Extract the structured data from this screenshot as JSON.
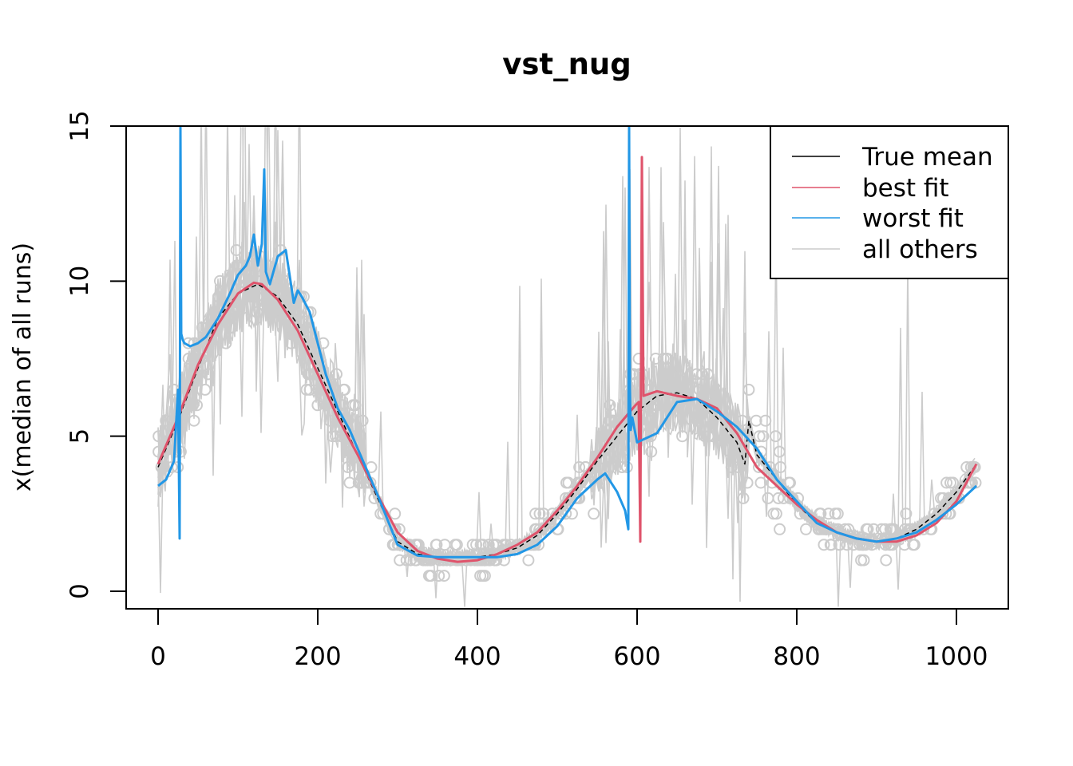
{
  "chart_data": {
    "type": "line",
    "title": "vst_nug",
    "xlabel": "",
    "ylabel": "x(median of all runs)",
    "xlim": [
      -10,
      1035
    ],
    "ylim": [
      -0.6,
      15
    ],
    "x_ticks": [
      0,
      200,
      400,
      600,
      800,
      1000
    ],
    "x_tick_labels": [
      "0",
      "200",
      "400",
      "600",
      "800",
      "1000"
    ],
    "y_ticks": [
      0,
      5,
      10,
      15
    ],
    "y_tick_labels": [
      "0",
      "5",
      "10",
      "15"
    ],
    "grid": false,
    "legend_position": "top-right",
    "colors": {
      "true_mean": "#000000",
      "best_fit": "#DF536B",
      "worst_fit": "#2297E6",
      "all_others": "#CCCCCC"
    },
    "series": [
      {
        "name": "True mean",
        "color": "#000000",
        "style": "dashed",
        "x": [
          0,
          25,
          50,
          75,
          100,
          125,
          150,
          175,
          200,
          225,
          250,
          275,
          300,
          325,
          350,
          375,
          400,
          425,
          450,
          475,
          500,
          525,
          550,
          575,
          600,
          625,
          650,
          675,
          700,
          725,
          735,
          740,
          750,
          775,
          800,
          825,
          850,
          875,
          900,
          925,
          950,
          975,
          1000,
          1025
        ],
        "y": [
          4.0,
          5.5,
          7.2,
          8.8,
          9.6,
          9.9,
          9.5,
          8.6,
          7.2,
          5.8,
          4.4,
          3.0,
          1.6,
          1.2,
          1.1,
          1.1,
          1.1,
          1.2,
          1.4,
          1.8,
          2.5,
          3.3,
          4.2,
          5.0,
          5.8,
          6.3,
          6.4,
          6.2,
          5.6,
          4.8,
          4.1,
          5.5,
          4.4,
          3.6,
          2.8,
          2.2,
          1.9,
          1.7,
          1.6,
          1.7,
          2.0,
          2.5,
          3.2,
          4.1
        ]
      },
      {
        "name": "best fit",
        "color": "#DF536B",
        "x": [
          0,
          25,
          50,
          75,
          100,
          120,
          130,
          150,
          175,
          200,
          225,
          250,
          275,
          300,
          325,
          350,
          375,
          400,
          425,
          450,
          475,
          500,
          525,
          550,
          575,
          598,
          602,
          604,
          606,
          608,
          625,
          650,
          675,
          700,
          725,
          750,
          775,
          800,
          825,
          850,
          875,
          900,
          925,
          950,
          975,
          1000,
          1025
        ],
        "y": [
          4.1,
          5.6,
          7.3,
          8.6,
          9.6,
          9.95,
          9.9,
          9.4,
          8.4,
          7.0,
          5.6,
          4.4,
          3.1,
          1.9,
          1.3,
          1.05,
          0.95,
          1.0,
          1.2,
          1.5,
          1.9,
          2.6,
          3.4,
          4.3,
          5.3,
          6.0,
          6.1,
          1.6,
          14.0,
          6.3,
          6.45,
          6.3,
          6.2,
          5.9,
          5.1,
          4.0,
          3.4,
          2.8,
          2.3,
          1.9,
          1.7,
          1.6,
          1.6,
          1.8,
          2.2,
          2.9,
          4.1
        ]
      },
      {
        "name": "worst fit",
        "color": "#2297E6",
        "x": [
          0,
          10,
          20,
          25,
          27,
          28,
          29,
          31,
          33,
          40,
          50,
          60,
          75,
          90,
          100,
          110,
          115,
          120,
          125,
          130,
          133,
          135,
          140,
          150,
          160,
          170,
          175,
          180,
          190,
          200,
          210,
          225,
          240,
          250,
          275,
          300,
          325,
          350,
          375,
          400,
          425,
          450,
          475,
          500,
          525,
          550,
          560,
          575,
          585,
          589,
          590,
          591,
          592,
          594,
          600,
          625,
          650,
          675,
          700,
          725,
          750,
          775,
          800,
          825,
          850,
          875,
          900,
          925,
          950,
          975,
          1000,
          1025
        ],
        "y": [
          3.4,
          3.6,
          4.2,
          6.5,
          1.7,
          15.0,
          8.3,
          8.1,
          8.0,
          7.9,
          8.0,
          8.2,
          8.8,
          9.6,
          10.2,
          10.5,
          10.8,
          11.5,
          10.5,
          11.2,
          13.6,
          10.3,
          9.9,
          10.8,
          11.0,
          9.3,
          9.7,
          9.5,
          9.0,
          8.0,
          7.0,
          5.9,
          5.2,
          4.6,
          3.1,
          1.5,
          1.15,
          1.1,
          1.1,
          1.1,
          1.1,
          1.2,
          1.5,
          2.1,
          3.0,
          3.6,
          3.8,
          3.2,
          2.6,
          2.0,
          15.0,
          6.5,
          5.2,
          5.6,
          4.8,
          5.1,
          6.1,
          6.2,
          5.8,
          5.3,
          4.6,
          3.6,
          2.9,
          2.2,
          1.9,
          1.7,
          1.6,
          1.7,
          1.9,
          2.3,
          2.8,
          3.4
        ]
      }
    ]
  }
}
